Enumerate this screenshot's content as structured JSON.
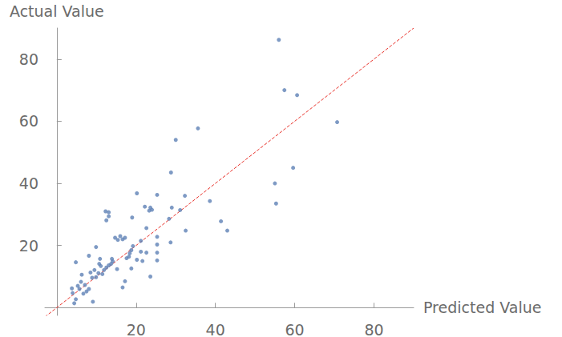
{
  "chart_data": {
    "type": "scatter",
    "x_label": "Predicted Value",
    "y_label": "Actual Value",
    "xlim": [
      -3,
      90
    ],
    "ylim": [
      -2.5,
      90
    ],
    "xticks": [
      20,
      40,
      60,
      80
    ],
    "yticks": [
      20,
      40,
      60,
      80
    ],
    "grid": false,
    "color": "#5e81b5",
    "marker": "circle",
    "x": [
      56,
      57.4,
      60.6,
      70.7,
      35.6,
      30,
      28.8,
      59.6,
      55,
      55.3,
      38.6,
      41.4,
      43,
      32.3,
      32.5,
      31.1,
      29,
      28.3,
      28.7,
      25.3,
      23.6,
      23.3,
      24,
      22.2,
      22.6,
      20.2,
      25.3,
      25.3,
      25.3,
      25.3,
      23.6,
      22.6,
      21.2,
      21.2,
      20.2,
      21.6,
      19.2,
      18.8,
      18.4,
      18.2,
      17.6,
      18.8,
      17.2,
      16.6,
      19,
      17.2,
      16,
      15.4,
      16.6,
      14.7,
      13.1,
      12.3,
      12.5,
      13.1,
      14.1,
      13.7,
      13.1,
      12.5,
      11.9,
      10.9,
      10.7,
      9.5,
      10.5,
      9.9,
      8.9,
      8.5,
      8.1,
      9.9,
      6.3,
      7.1,
      6.1,
      6.7,
      5.3,
      4.8,
      5.7,
      4,
      4.8,
      4.4,
      9.1,
      8.1,
      7.5,
      11.1,
      13.9,
      15.2,
      11.5,
      3.8
    ],
    "values": [
      86.2,
      70,
      68.4,
      59.7,
      57.7,
      54,
      43.5,
      45,
      40,
      33.5,
      34.3,
      27.8,
      24.8,
      36,
      24.8,
      31.4,
      32.2,
      28.6,
      21,
      36.3,
      32.2,
      31.2,
      31.5,
      32.5,
      25.6,
      36.8,
      22.8,
      20.3,
      17.7,
      15.2,
      10,
      17.7,
      21.5,
      18,
      15.4,
      15,
      19.8,
      18.5,
      17.5,
      16.4,
      15.9,
      12.6,
      8.5,
      6.5,
      29,
      22.5,
      23,
      21.8,
      22,
      22.5,
      30.7,
      31,
      28.1,
      29.4,
      14.9,
      14.1,
      13.6,
      12.9,
      12.1,
      15.7,
      14.1,
      12.1,
      11.1,
      9.8,
      9.6,
      11.3,
      16.7,
      19.5,
      10.6,
      7.3,
      8.3,
      4.5,
      7,
      14.6,
      6,
      4.7,
      2.7,
      1.4,
      1.9,
      6,
      5.2,
      13.4,
      15.7,
      12.4,
      10.8,
      6.2
    ],
    "reference_line": {
      "x": [
        -3,
        90
      ],
      "y": [
        -3,
        90
      ],
      "color": "#e8312a",
      "line_style": "dashed"
    }
  }
}
